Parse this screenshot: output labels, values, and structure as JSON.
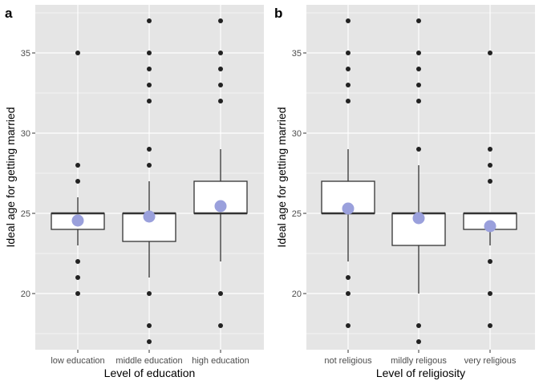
{
  "chart_data": [
    {
      "panel_label": "a",
      "type": "box",
      "xlabel": "Level of education",
      "ylabel": "Ideal age for getting married",
      "ylim": [
        16.5,
        38.0
      ],
      "yticks": [
        20,
        25,
        30,
        35
      ],
      "grid": true,
      "background": "#e5e5e5",
      "categories": [
        "low education",
        "middle education",
        "high education"
      ],
      "boxes": [
        {
          "category": "low education",
          "whisker_low": 23,
          "q1": 24,
          "median": 25,
          "q3": 25,
          "whisker_high": 26,
          "outliers": [
            20,
            21,
            22,
            27,
            28,
            35
          ],
          "mean": 24.55
        },
        {
          "category": "middle education",
          "whisker_low": 21,
          "q1": 23.25,
          "median": 25,
          "q3": 25,
          "whisker_high": 27,
          "outliers": [
            17,
            18,
            20,
            28,
            29,
            32,
            33,
            34,
            35,
            37
          ],
          "mean": 24.8
        },
        {
          "category": "high education",
          "whisker_low": 22,
          "q1": 25,
          "median": 25,
          "q3": 27,
          "whisker_high": 29,
          "outliers": [
            18,
            20,
            32,
            33,
            34,
            35,
            37
          ],
          "mean": 25.45
        }
      ]
    },
    {
      "panel_label": "b",
      "type": "box",
      "xlabel": "Level of religiosity",
      "ylabel": "Ideal age for getting married",
      "ylim": [
        16.5,
        38.0
      ],
      "yticks": [
        20,
        25,
        30,
        35
      ],
      "grid": true,
      "background": "#e5e5e5",
      "categories": [
        "not religious",
        "mildly religous",
        "very religious"
      ],
      "boxes": [
        {
          "category": "not religious",
          "whisker_low": 22,
          "q1": 25,
          "median": 25,
          "q3": 27,
          "whisker_high": 29,
          "outliers": [
            18,
            20,
            21,
            32,
            33,
            34,
            35,
            37
          ],
          "mean": 25.3
        },
        {
          "category": "mildly religous",
          "whisker_low": 20,
          "q1": 23,
          "median": 25,
          "q3": 25,
          "whisker_high": 28,
          "outliers": [
            17,
            18,
            29,
            32,
            33,
            34,
            35,
            37
          ],
          "mean": 24.7
        },
        {
          "category": "very religious",
          "whisker_low": 23,
          "q1": 24,
          "median": 25,
          "q3": 25,
          "whisker_high": 25,
          "outliers": [
            18,
            20,
            22,
            27,
            28,
            29,
            35
          ],
          "mean": 24.2
        }
      ]
    }
  ],
  "colors": {
    "panel_background": "#e5e5e5",
    "gridline": "#ffffff",
    "box_fill": "#ffffff",
    "box_stroke": "#333333",
    "outlier": "#222222",
    "mean_point": "#9aa0dc",
    "axis_text": "#4d4d4d",
    "title_text": "#000000"
  }
}
